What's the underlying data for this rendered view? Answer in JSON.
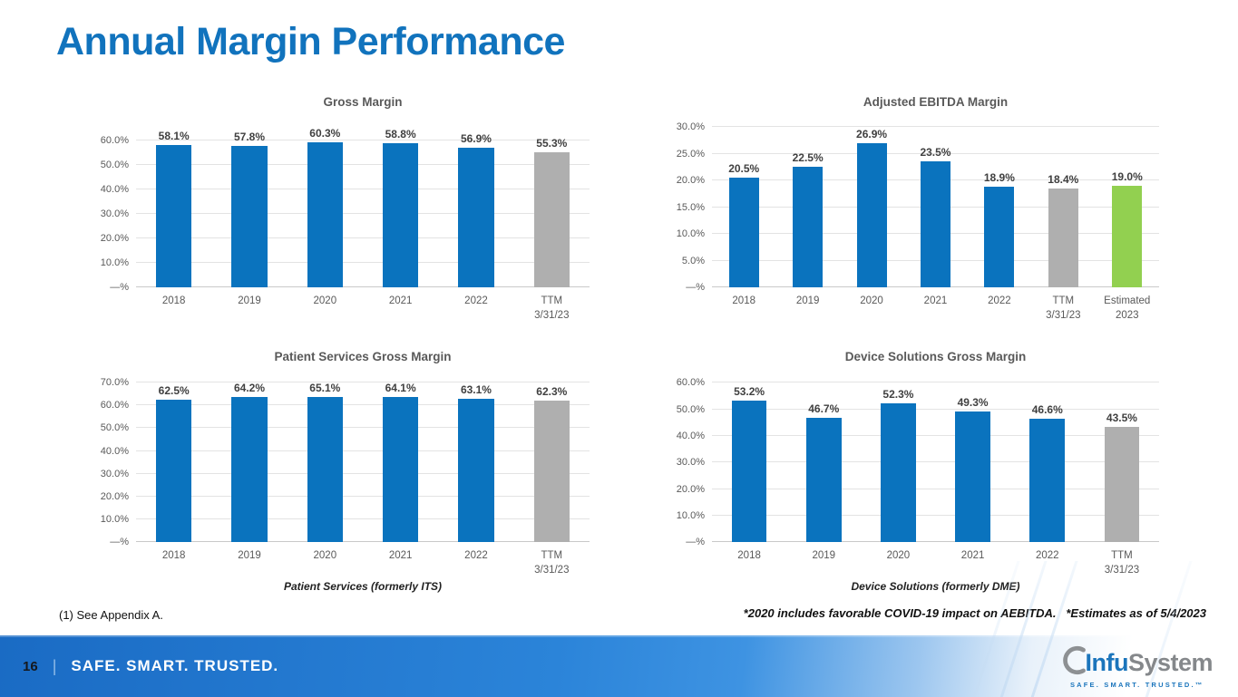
{
  "slide": {
    "title": "Annual Margin Performance"
  },
  "colors": {
    "bar_blue": "#0A73BE",
    "bar_gray": "#AFAFAF",
    "bar_green": "#92D050",
    "title_blue": "#1173BD",
    "footer_blue_left": "#1A6BC4",
    "footer_blue_right": "#3E93E2"
  },
  "chart_data": [
    {
      "type": "bar",
      "title": "Gross Margin",
      "categories": [
        "2018",
        "2019",
        "2020",
        "2021",
        "2022",
        "TTM\n3/31/23"
      ],
      "values": [
        58.1,
        57.8,
        60.3,
        58.8,
        56.9,
        55.3
      ],
      "labels": [
        "58.1%",
        "57.8%",
        "60.3%",
        "58.8%",
        "56.9%",
        "55.3%"
      ],
      "colors": [
        "#0A73BE",
        "#0A73BE",
        "#0A73BE",
        "#0A73BE",
        "#0A73BE",
        "#AFAFAF"
      ],
      "yticks": [
        "60.0%",
        "50.0%",
        "40.0%",
        "30.0%",
        "20.0%",
        "10.0%",
        "—%"
      ],
      "ytick_values": [
        60,
        50,
        40,
        30,
        20,
        10,
        0
      ],
      "ylim": [
        0,
        65.5
      ],
      "grid": true,
      "legend": "none",
      "footnote": ""
    },
    {
      "type": "bar",
      "title": "Adjusted EBITDA Margin",
      "categories": [
        "2018",
        "2019",
        "2020",
        "2021",
        "2022",
        "TTM\n3/31/23",
        "Estimated\n2023"
      ],
      "values": [
        20.5,
        22.5,
        26.9,
        23.5,
        18.9,
        18.4,
        19.0
      ],
      "labels": [
        "20.5%",
        "22.5%",
        "26.9%",
        "23.5%",
        "18.9%",
        "18.4%",
        "19.0%"
      ],
      "colors": [
        "#0A73BE",
        "#0A73BE",
        "#0A73BE",
        "#0A73BE",
        "#0A73BE",
        "#AFAFAF",
        "#92D050"
      ],
      "yticks": [
        "30.0%",
        "25.0%",
        "20.0%",
        "15.0%",
        "10.0%",
        "5.0%",
        "—%"
      ],
      "ytick_values": [
        30,
        25,
        20,
        15,
        10,
        5,
        0
      ],
      "ylim": [
        0,
        30
      ],
      "grid": true,
      "legend": "none",
      "footnote": ""
    },
    {
      "type": "bar",
      "title": "Patient Services Gross Margin",
      "categories": [
        "2018",
        "2019",
        "2020",
        "2021",
        "2022",
        "TTM\n3/31/23"
      ],
      "values": [
        62.5,
        64.2,
        65.1,
        64.1,
        63.1,
        62.3
      ],
      "labels": [
        "62.5%",
        "64.2%",
        "65.1%",
        "64.1%",
        "63.1%",
        "62.3%"
      ],
      "colors": [
        "#0A73BE",
        "#0A73BE",
        "#0A73BE",
        "#0A73BE",
        "#0A73BE",
        "#AFAFAF"
      ],
      "yticks": [
        "70.0%",
        "60.0%",
        "50.0%",
        "40.0%",
        "30.0%",
        "20.0%",
        "10.0%",
        "—%"
      ],
      "ytick_values": [
        70,
        60,
        50,
        40,
        30,
        20,
        10,
        0
      ],
      "ylim": [
        0,
        70.5
      ],
      "grid": true,
      "legend": "none",
      "footnote": "Patient Services (formerly ITS)"
    },
    {
      "type": "bar",
      "title": "Device Solutions Gross Margin",
      "categories": [
        "2018",
        "2019",
        "2020",
        "2021",
        "2022",
        "TTM\n3/31/23"
      ],
      "values": [
        53.2,
        46.7,
        52.3,
        49.3,
        46.6,
        43.5
      ],
      "labels": [
        "53.2%",
        "46.7%",
        "52.3%",
        "49.3%",
        "46.6%",
        "43.5%"
      ],
      "colors": [
        "#0A73BE",
        "#0A73BE",
        "#0A73BE",
        "#0A73BE",
        "#0A73BE",
        "#AFAFAF"
      ],
      "yticks": [
        "60.0%",
        "50.0%",
        "40.0%",
        "30.0%",
        "20.0%",
        "10.0%",
        "—%"
      ],
      "ytick_values": [
        60,
        50,
        40,
        30,
        20,
        10,
        0
      ],
      "ylim": [
        0,
        60.5
      ],
      "grid": true,
      "legend": "none",
      "footnote": "Device Solutions (formerly DME)"
    }
  ],
  "footnotes": {
    "left": "(1) See Appendix A.",
    "right": "*2020 includes favorable COVID-19 impact on AEBITDA.   *Estimates as of 5/4/2023"
  },
  "footer": {
    "page_number": "16",
    "separator": "|",
    "tagline": "SAFE. SMART. TRUSTED."
  },
  "logo": {
    "name_blue": "Infu",
    "name_gray": "System",
    "tagline": "SAFE. SMART. TRUSTED.™"
  }
}
